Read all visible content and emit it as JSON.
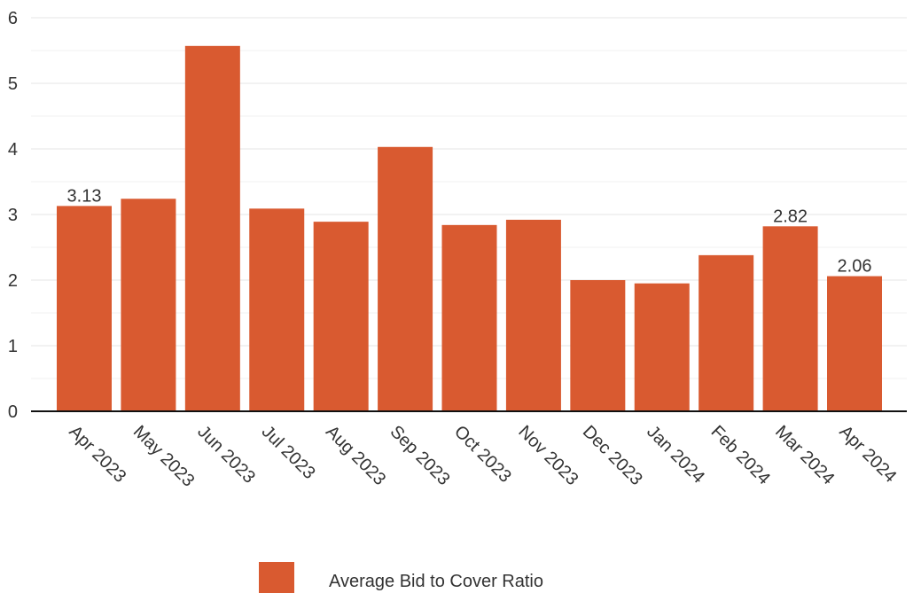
{
  "chart_data": {
    "type": "bar",
    "categories": [
      "Apr 2023",
      "May 2023",
      "Jun 2023",
      "Jul 2023",
      "Aug 2023",
      "Sep 2023",
      "Oct 2023",
      "Nov 2023",
      "Dec 2023",
      "Jan 2024",
      "Feb 2024",
      "Mar 2024",
      "Apr 2024"
    ],
    "series": [
      {
        "name": "Average Bid to Cover Ratio",
        "values": [
          3.13,
          3.24,
          5.57,
          3.09,
          2.89,
          4.03,
          2.84,
          2.92,
          2.0,
          1.95,
          2.38,
          2.82,
          2.06
        ],
        "color": "#d95a30"
      }
    ],
    "data_labels": [
      {
        "index": 0,
        "text": "3.13"
      },
      {
        "index": 11,
        "text": "2.82"
      },
      {
        "index": 12,
        "text": "2.06"
      }
    ],
    "ylim": [
      0,
      6
    ],
    "yticks": [
      "0",
      "1",
      "2",
      "3",
      "4",
      "5",
      "6"
    ],
    "grid": true,
    "legend_position": "bottom"
  }
}
